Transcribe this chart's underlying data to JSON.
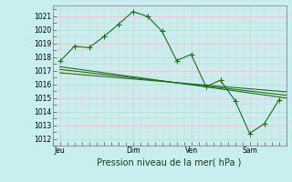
{
  "background_color": "#c8eef0",
  "grid_color": "#e8c8c8",
  "line_color": "#1a6e1a",
  "marker_color": "#1a6e1a",
  "ylabel_ticks": [
    1012,
    1013,
    1014,
    1015,
    1016,
    1017,
    1018,
    1019,
    1020,
    1021
  ],
  "ylim": [
    1011.5,
    1021.8
  ],
  "xlabel": "Pression niveau de la mer( hPa )",
  "day_labels": [
    "Jeu",
    "Dim",
    "Ven",
    "Sam"
  ],
  "day_positions": [
    8,
    88,
    152,
    216
  ],
  "xlim": [
    0,
    256
  ],
  "series1_x": [
    8,
    24,
    40,
    56,
    72,
    88,
    104,
    120,
    136,
    152,
    168,
    184,
    200,
    216,
    232,
    248
  ],
  "series1_y": [
    1017.7,
    1018.8,
    1018.7,
    1019.5,
    1020.4,
    1021.35,
    1021.0,
    1019.9,
    1017.75,
    1018.2,
    1015.85,
    1016.3,
    1014.8,
    1012.4,
    1013.1,
    1014.85
  ],
  "series2_x": [
    8,
    256
  ],
  "series2_y": [
    1017.3,
    1015.0
  ],
  "series3_x": [
    8,
    256
  ],
  "series3_y": [
    1017.1,
    1015.2
  ],
  "series4_x": [
    8,
    256
  ],
  "series4_y": [
    1016.85,
    1015.45
  ],
  "linewidth": 0.8,
  "tick_fontsize": 5.5,
  "label_fontsize": 7
}
